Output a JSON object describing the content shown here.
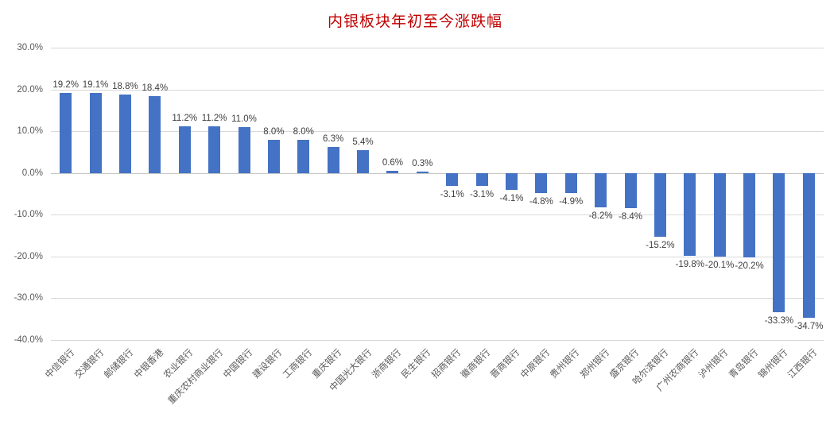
{
  "chart_data": {
    "type": "bar",
    "title": "内银板块年初至今涨跌幅",
    "categories": [
      "中信银行",
      "交通银行",
      "邮储银行",
      "中银香港",
      "农业银行",
      "重庆农村商业银行",
      "中国银行",
      "建设银行",
      "工商银行",
      "重庆银行",
      "中国光大银行",
      "浙商银行",
      "民生银行",
      "招商银行",
      "徽商银行",
      "晋商银行",
      "中原银行",
      "贵州银行",
      "郑州银行",
      "盛京银行",
      "哈尔滨银行",
      "广州农商银行",
      "泸州银行",
      "青岛银行",
      "锦州银行",
      "江西银行"
    ],
    "values": [
      19.2,
      19.1,
      18.8,
      18.4,
      11.2,
      11.2,
      11.0,
      8.0,
      8.0,
      6.3,
      5.4,
      0.6,
      0.3,
      -3.1,
      -3.1,
      -4.1,
      -4.8,
      -4.9,
      -8.2,
      -8.4,
      -15.2,
      -19.8,
      -20.1,
      -20.2,
      -33.3,
      -34.7
    ],
    "data_labels": [
      "19.2%",
      "19.1%",
      "18.8%",
      "18.4%",
      "11.2%",
      "11.2%",
      "11.0%",
      "8.0%",
      "8.0%",
      "6.3%",
      "5.4%",
      "0.6%",
      "0.3%",
      "-3.1%",
      "-3.1%",
      "-4.1%",
      "-4.8%",
      "-4.9%",
      "-8.2%",
      "-8.4%",
      "-15.2%",
      "-19.8%",
      "-20.1%",
      "-20.2%",
      "-33.3%",
      "-34.7%"
    ],
    "ylim": [
      -40,
      30
    ],
    "ytick_step": 10,
    "ytick_labels": [
      "30.0%",
      "20.0%",
      "10.0%",
      "0.0%",
      "-10.0%",
      "-20.0%",
      "-30.0%",
      "-40.0%"
    ],
    "grid": true,
    "legend": "none",
    "colors": {
      "bar": "#4472c4",
      "title": "#c00000",
      "gridline": "#d9d9d9",
      "zero_line": "#c6c6c6",
      "axis_text": "#595959",
      "data_label_text": "#404040"
    }
  }
}
